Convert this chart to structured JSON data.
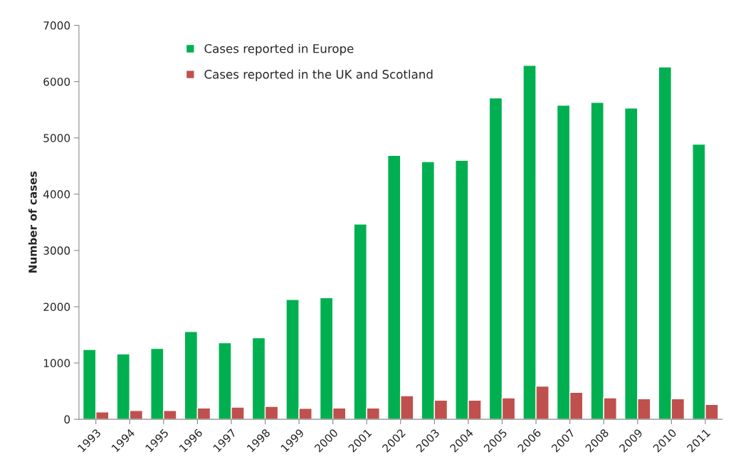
{
  "chart_data": {
    "type": "bar",
    "ylabel": "Number of cases",
    "categories": [
      "1993",
      "1994",
      "1995",
      "1996",
      "1997",
      "1998",
      "1999",
      "2000",
      "2001",
      "2002",
      "2003",
      "2004",
      "2005",
      "2006",
      "2007",
      "2008",
      "2009",
      "2010",
      "2011"
    ],
    "series": [
      {
        "name": "Cases reported in Europe",
        "color": "#00b050",
        "values": [
          1240,
          1160,
          1260,
          1560,
          1360,
          1450,
          2130,
          2160,
          3470,
          4690,
          4580,
          4600,
          5710,
          6290,
          5580,
          5630,
          5530,
          6260,
          4890
        ]
      },
      {
        "name": "Cases reported in the UK and Scotland",
        "color": "#c0504d",
        "values": [
          130,
          155,
          155,
          200,
          215,
          230,
          195,
          200,
          200,
          420,
          340,
          340,
          380,
          590,
          480,
          380,
          365,
          365,
          265
        ]
      }
    ],
    "ylim": [
      0,
      7000
    ],
    "yticks": [
      0,
      1000,
      2000,
      3000,
      4000,
      5000,
      6000,
      7000
    ],
    "grid": false,
    "legend": "top left"
  }
}
